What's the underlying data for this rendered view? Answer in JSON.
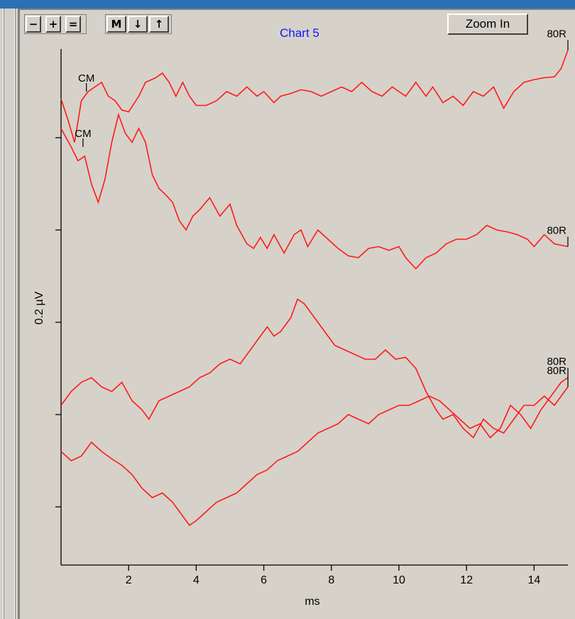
{
  "toolbar": {
    "minus_label": "−",
    "plus_label": "+",
    "equals_label": "=",
    "mark_label": "M",
    "down_label": "↓",
    "up_label": "↑",
    "zoom_label": "Zoom In"
  },
  "colors": {
    "title": "#1414ff",
    "trace": "#ff1a1a",
    "magenta_label": "#ff00ff",
    "panel_bg": "#d6d2c9",
    "frame_bg": "#2b6fb6"
  },
  "chart_data": {
    "type": "line",
    "title": "Chart 5",
    "xlabel": "ms",
    "ylabel": "0.2 µV",
    "xlim": [
      0,
      15
    ],
    "x_ticks": [
      2,
      4,
      6,
      8,
      10,
      12,
      14
    ],
    "y_ticks": [
      0,
      1,
      2,
      3,
      4
    ],
    "grid": false,
    "series": [
      {
        "name": "80R",
        "label_color": "#000000",
        "points": [
          [
            0,
            4.42
          ],
          [
            0.2,
            4.2
          ],
          [
            0.4,
            3.95
          ],
          [
            0.6,
            4.4
          ],
          [
            0.8,
            4.5
          ],
          [
            1.0,
            4.55
          ],
          [
            1.2,
            4.6
          ],
          [
            1.4,
            4.45
          ],
          [
            1.6,
            4.4
          ],
          [
            1.8,
            4.3
          ],
          [
            2.0,
            4.28
          ],
          [
            2.3,
            4.45
          ],
          [
            2.5,
            4.6
          ],
          [
            2.8,
            4.65
          ],
          [
            3.0,
            4.7
          ],
          [
            3.2,
            4.6
          ],
          [
            3.4,
            4.45
          ],
          [
            3.6,
            4.6
          ],
          [
            3.8,
            4.45
          ],
          [
            4.0,
            4.35
          ],
          [
            4.3,
            4.35
          ],
          [
            4.6,
            4.4
          ],
          [
            4.9,
            4.5
          ],
          [
            5.2,
            4.45
          ],
          [
            5.5,
            4.55
          ],
          [
            5.8,
            4.45
          ],
          [
            6.0,
            4.5
          ],
          [
            6.3,
            4.38
          ],
          [
            6.5,
            4.45
          ],
          [
            6.8,
            4.48
          ],
          [
            7.1,
            4.52
          ],
          [
            7.4,
            4.5
          ],
          [
            7.7,
            4.45
          ],
          [
            8.0,
            4.5
          ],
          [
            8.3,
            4.55
          ],
          [
            8.6,
            4.5
          ],
          [
            8.9,
            4.6
          ],
          [
            9.2,
            4.5
          ],
          [
            9.5,
            4.45
          ],
          [
            9.8,
            4.55
          ],
          [
            10.0,
            4.5
          ],
          [
            10.2,
            4.45
          ],
          [
            10.5,
            4.6
          ],
          [
            10.8,
            4.45
          ],
          [
            11.0,
            4.55
          ],
          [
            11.3,
            4.38
          ],
          [
            11.6,
            4.45
          ],
          [
            11.9,
            4.35
          ],
          [
            12.2,
            4.5
          ],
          [
            12.5,
            4.45
          ],
          [
            12.8,
            4.55
          ],
          [
            13.1,
            4.32
          ],
          [
            13.4,
            4.5
          ],
          [
            13.7,
            4.6
          ],
          [
            14.0,
            4.63
          ],
          [
            14.3,
            4.65
          ],
          [
            14.6,
            4.66
          ],
          [
            14.8,
            4.75
          ],
          [
            15.0,
            4.95
          ]
        ]
      },
      {
        "name": "80R",
        "label_color": "#ff00ff",
        "points": [
          [
            0,
            4.1
          ],
          [
            0.3,
            3.9
          ],
          [
            0.5,
            3.75
          ],
          [
            0.7,
            3.8
          ],
          [
            0.9,
            3.5
          ],
          [
            1.1,
            3.3
          ],
          [
            1.3,
            3.55
          ],
          [
            1.5,
            3.95
          ],
          [
            1.7,
            4.25
          ],
          [
            1.9,
            4.05
          ],
          [
            2.1,
            3.95
          ],
          [
            2.3,
            4.1
          ],
          [
            2.5,
            3.95
          ],
          [
            2.7,
            3.6
          ],
          [
            2.9,
            3.45
          ],
          [
            3.1,
            3.38
          ],
          [
            3.3,
            3.3
          ],
          [
            3.5,
            3.1
          ],
          [
            3.7,
            3.0
          ],
          [
            3.9,
            3.15
          ],
          [
            4.1,
            3.22
          ],
          [
            4.4,
            3.35
          ],
          [
            4.7,
            3.15
          ],
          [
            5.0,
            3.28
          ],
          [
            5.2,
            3.05
          ],
          [
            5.5,
            2.85
          ],
          [
            5.7,
            2.8
          ],
          [
            5.9,
            2.92
          ],
          [
            6.1,
            2.8
          ],
          [
            6.3,
            2.95
          ],
          [
            6.6,
            2.75
          ],
          [
            6.9,
            2.95
          ],
          [
            7.1,
            3.0
          ],
          [
            7.3,
            2.82
          ],
          [
            7.6,
            3.0
          ],
          [
            7.9,
            2.9
          ],
          [
            8.2,
            2.8
          ],
          [
            8.5,
            2.72
          ],
          [
            8.8,
            2.7
          ],
          [
            9.1,
            2.8
          ],
          [
            9.4,
            2.82
          ],
          [
            9.7,
            2.78
          ],
          [
            10.0,
            2.82
          ],
          [
            10.2,
            2.7
          ],
          [
            10.5,
            2.58
          ],
          [
            10.8,
            2.7
          ],
          [
            11.1,
            2.75
          ],
          [
            11.4,
            2.85
          ],
          [
            11.7,
            2.9
          ],
          [
            12.0,
            2.9
          ],
          [
            12.3,
            2.95
          ],
          [
            12.6,
            3.05
          ],
          [
            12.9,
            3.0
          ],
          [
            13.2,
            2.98
          ],
          [
            13.5,
            2.95
          ],
          [
            13.8,
            2.9
          ],
          [
            14.0,
            2.82
          ],
          [
            14.3,
            2.95
          ],
          [
            14.6,
            2.85
          ],
          [
            15.0,
            2.82
          ]
        ]
      },
      {
        "name": "80R",
        "label_color": "#000000",
        "points": [
          [
            0,
            1.1
          ],
          [
            0.3,
            1.25
          ],
          [
            0.6,
            1.35
          ],
          [
            0.9,
            1.4
          ],
          [
            1.2,
            1.3
          ],
          [
            1.5,
            1.25
          ],
          [
            1.8,
            1.35
          ],
          [
            2.1,
            1.15
          ],
          [
            2.4,
            1.05
          ],
          [
            2.6,
            0.95
          ],
          [
            2.9,
            1.15
          ],
          [
            3.2,
            1.2
          ],
          [
            3.5,
            1.25
          ],
          [
            3.8,
            1.3
          ],
          [
            4.1,
            1.4
          ],
          [
            4.4,
            1.45
          ],
          [
            4.7,
            1.55
          ],
          [
            5.0,
            1.6
          ],
          [
            5.3,
            1.55
          ],
          [
            5.6,
            1.7
          ],
          [
            5.9,
            1.85
          ],
          [
            6.1,
            1.95
          ],
          [
            6.3,
            1.85
          ],
          [
            6.5,
            1.9
          ],
          [
            6.8,
            2.05
          ],
          [
            7.0,
            2.25
          ],
          [
            7.2,
            2.2
          ],
          [
            7.5,
            2.05
          ],
          [
            7.8,
            1.9
          ],
          [
            8.1,
            1.75
          ],
          [
            8.4,
            1.7
          ],
          [
            8.7,
            1.65
          ],
          [
            9.0,
            1.6
          ],
          [
            9.3,
            1.6
          ],
          [
            9.6,
            1.7
          ],
          [
            9.9,
            1.6
          ],
          [
            10.2,
            1.62
          ],
          [
            10.5,
            1.5
          ],
          [
            10.8,
            1.25
          ],
          [
            11.1,
            1.05
          ],
          [
            11.3,
            0.95
          ],
          [
            11.6,
            1.0
          ],
          [
            11.9,
            0.85
          ],
          [
            12.2,
            0.75
          ],
          [
            12.5,
            0.95
          ],
          [
            12.8,
            0.85
          ],
          [
            13.1,
            0.8
          ],
          [
            13.4,
            0.95
          ],
          [
            13.7,
            1.1
          ],
          [
            14.0,
            1.1
          ],
          [
            14.3,
            1.2
          ],
          [
            14.6,
            1.1
          ],
          [
            14.8,
            1.2
          ],
          [
            15.0,
            1.3
          ]
        ]
      },
      {
        "name": "80R",
        "label_color": "#000000",
        "points": [
          [
            0,
            0.6
          ],
          [
            0.3,
            0.5
          ],
          [
            0.6,
            0.55
          ],
          [
            0.9,
            0.7
          ],
          [
            1.2,
            0.6
          ],
          [
            1.5,
            0.52
          ],
          [
            1.8,
            0.45
          ],
          [
            2.1,
            0.35
          ],
          [
            2.4,
            0.2
          ],
          [
            2.7,
            0.1
          ],
          [
            3.0,
            0.15
          ],
          [
            3.3,
            0.05
          ],
          [
            3.5,
            -0.05
          ],
          [
            3.8,
            -0.2
          ],
          [
            4.0,
            -0.15
          ],
          [
            4.3,
            -0.05
          ],
          [
            4.6,
            0.05
          ],
          [
            4.9,
            0.1
          ],
          [
            5.2,
            0.15
          ],
          [
            5.5,
            0.25
          ],
          [
            5.8,
            0.35
          ],
          [
            6.1,
            0.4
          ],
          [
            6.4,
            0.5
          ],
          [
            6.7,
            0.55
          ],
          [
            7.0,
            0.6
          ],
          [
            7.3,
            0.7
          ],
          [
            7.6,
            0.8
          ],
          [
            7.9,
            0.85
          ],
          [
            8.2,
            0.9
          ],
          [
            8.5,
            1.0
          ],
          [
            8.8,
            0.95
          ],
          [
            9.1,
            0.9
          ],
          [
            9.4,
            1.0
          ],
          [
            9.7,
            1.05
          ],
          [
            10.0,
            1.1
          ],
          [
            10.3,
            1.1
          ],
          [
            10.6,
            1.15
          ],
          [
            10.9,
            1.2
          ],
          [
            11.2,
            1.15
          ],
          [
            11.5,
            1.05
          ],
          [
            11.8,
            0.95
          ],
          [
            12.1,
            0.85
          ],
          [
            12.4,
            0.9
          ],
          [
            12.7,
            0.75
          ],
          [
            13.0,
            0.85
          ],
          [
            13.3,
            1.1
          ],
          [
            13.6,
            1.0
          ],
          [
            13.9,
            0.85
          ],
          [
            14.2,
            1.05
          ],
          [
            14.5,
            1.2
          ],
          [
            14.8,
            1.35
          ],
          [
            15.0,
            1.4
          ]
        ]
      }
    ],
    "markers": [
      {
        "label": "CM",
        "x": 0.75,
        "y": 4.5,
        "color": "#000000"
      },
      {
        "label": "CM",
        "x": 0.65,
        "y": 3.9,
        "color": "#000000"
      }
    ]
  }
}
